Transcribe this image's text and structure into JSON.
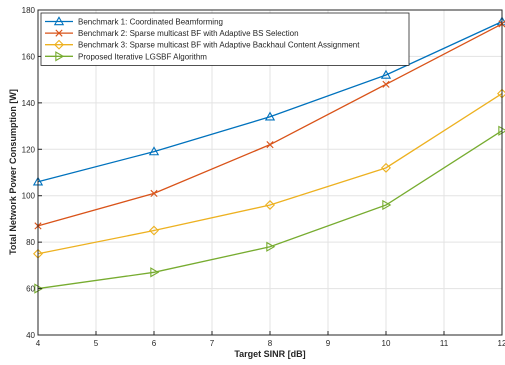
{
  "chart_data": {
    "type": "line",
    "title": "",
    "xlabel": "Target SINR [dB]",
    "ylabel": "Total Network Power Consumption [W]",
    "xlim": [
      4,
      12
    ],
    "ylim": [
      40,
      180
    ],
    "xticks": [
      4,
      5,
      6,
      7,
      8,
      9,
      10,
      11,
      12
    ],
    "yticks": [
      40,
      60,
      80,
      100,
      120,
      140,
      160,
      180
    ],
    "grid": true,
    "legend_position": "top-left",
    "x": [
      4,
      6,
      8,
      10,
      12
    ],
    "series": [
      {
        "name": "Benchmark 1: Coordinated Beamforming",
        "values": [
          106,
          119,
          134,
          152,
          175
        ],
        "color": "#0072bd",
        "marker": "triangle-up"
      },
      {
        "name": "Benchmark 2: Sparse multicast BF with Adaptive BS Selection",
        "values": [
          87,
          101,
          122,
          148,
          174
        ],
        "color": "#d95319",
        "marker": "cross"
      },
      {
        "name": "Benchmark 3: Sparse multicast BF with Adaptive Backhaul Content Assignment",
        "values": [
          75,
          85,
          96,
          112,
          144
        ],
        "color": "#edb120",
        "marker": "diamond"
      },
      {
        "name": "Proposed Iterative LGSBF Algorithm",
        "values": [
          60,
          67,
          78,
          96,
          128
        ],
        "color": "#77ac30",
        "marker": "triangle-right"
      }
    ]
  }
}
